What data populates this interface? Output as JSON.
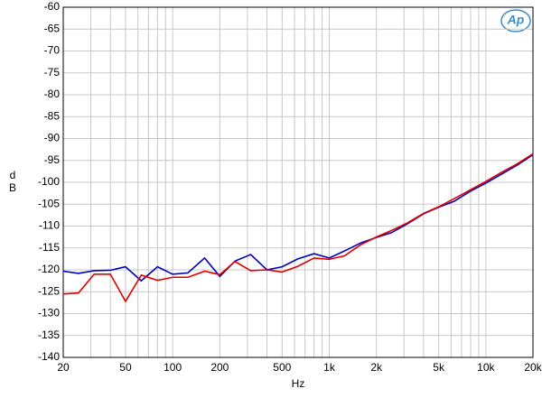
{
  "chart_data": {
    "type": "line",
    "xlabel": "Hz",
    "ylabel": [
      "d",
      "B"
    ],
    "logo": "Ap",
    "xscale": "log",
    "grid": true,
    "xlim": [
      20,
      20000
    ],
    "ylim": [
      -140,
      -60
    ],
    "xticks": [
      20,
      50,
      100,
      200,
      500,
      {
        "value": 1000,
        "label": "1k"
      },
      {
        "value": 2000,
        "label": "2k"
      },
      {
        "value": 5000,
        "label": "5k"
      },
      {
        "value": 10000,
        "label": "10k"
      },
      {
        "value": 20000,
        "label": "20k"
      }
    ],
    "xminor": [
      30,
      40,
      60,
      70,
      80,
      90,
      300,
      400,
      600,
      700,
      800,
      900,
      3000,
      4000,
      6000,
      7000,
      8000,
      9000
    ],
    "yticks": [
      -140,
      -135,
      -130,
      -125,
      -120,
      -115,
      -110,
      -105,
      -100,
      -95,
      -90,
      -85,
      -80,
      -75,
      -70,
      -65,
      -60
    ],
    "x": [
      20,
      25,
      31.5,
      40,
      50,
      63,
      80,
      100,
      125,
      160,
      200,
      250,
      315,
      400,
      500,
      630,
      800,
      1000,
      1250,
      1600,
      2000,
      2500,
      3150,
      4000,
      5000,
      6300,
      8000,
      10000,
      12500,
      16000,
      20000
    ],
    "series": [
      {
        "color": "#0000c0",
        "values": [
          -120.3,
          -120.8,
          -120.2,
          -120.1,
          -119.3,
          -122.5,
          -119.3,
          -121,
          -120.7,
          -117.3,
          -121.5,
          -118,
          -116.5,
          -120,
          -119.3,
          -117.5,
          -116.3,
          -117.3,
          -115.7,
          -113.8,
          -112.6,
          -111.5,
          -109.5,
          -107.2,
          -105.7,
          -104.3,
          -102,
          -100.2,
          -98.2,
          -96,
          -93.7
        ]
      },
      {
        "color": "#e00000",
        "values": [
          -125.5,
          -125.3,
          -121,
          -121,
          -127.2,
          -121.2,
          -122.4,
          -121.7,
          -121.7,
          -120.3,
          -121.1,
          -118.1,
          -120.2,
          -120,
          -120.5,
          -119.2,
          -117.3,
          -117.6,
          -116.8,
          -114.2,
          -112.5,
          -111,
          -109.3,
          -107.1,
          -105.6,
          -103.7,
          -101.7,
          -99.8,
          -97.8,
          -95.7,
          -93.5
        ]
      }
    ]
  }
}
